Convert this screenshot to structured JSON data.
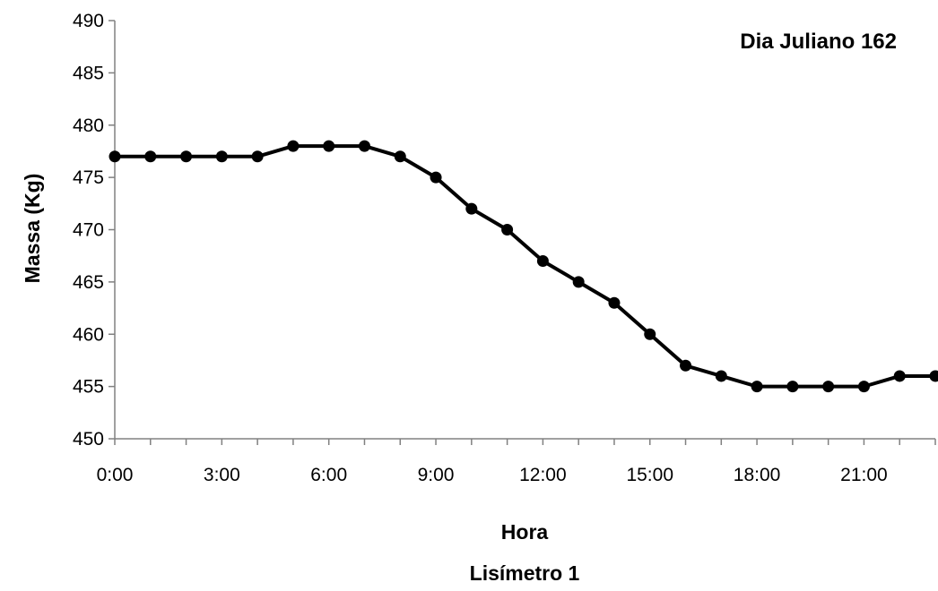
{
  "chart_data": {
    "type": "line",
    "annotation": "Dia Juliano 162",
    "xlabel": "Hora",
    "ylabel": "Massa (Kg)",
    "caption": "Lisímetro 1",
    "xlim": [
      0,
      23
    ],
    "ylim": [
      450,
      490
    ],
    "y_ticks": [
      450,
      455,
      460,
      465,
      470,
      475,
      480,
      485,
      490
    ],
    "x_tick_hours": [
      0,
      3,
      6,
      9,
      12,
      15,
      18,
      21
    ],
    "x_tick_labels": [
      "0:00",
      "3:00",
      "6:00",
      "9:00",
      "12:00",
      "15:00",
      "18:00",
      "21:00"
    ],
    "grid": false,
    "legend": "none",
    "series": [
      {
        "x": [
          0,
          1,
          2,
          3,
          4,
          5,
          6,
          7,
          8,
          9,
          10,
          11,
          12,
          13,
          14,
          15,
          16,
          17,
          18,
          19,
          20,
          21,
          22,
          23
        ],
        "values": [
          477,
          477,
          477,
          477,
          477,
          478,
          478,
          478,
          477,
          475,
          472,
          470,
          467,
          465,
          463,
          460,
          457,
          456,
          455,
          455,
          455,
          455,
          456,
          456
        ],
        "color": "#000000"
      }
    ]
  }
}
